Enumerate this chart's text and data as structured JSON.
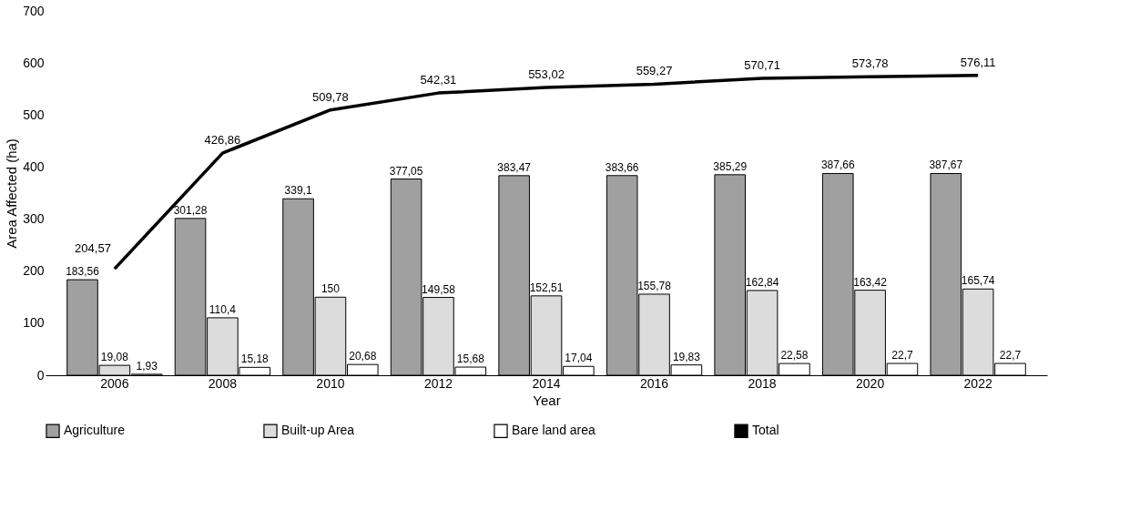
{
  "chart_data": {
    "type": "bar",
    "xlabel": "Year",
    "ylabel": "Area Affected (ha)",
    "categories": [
      "2006",
      "2008",
      "2010",
      "2012",
      "2014",
      "2016",
      "2018",
      "2020",
      "2022"
    ],
    "ylim": [
      0,
      700
    ],
    "yticks": [
      0,
      100,
      200,
      300,
      400,
      500,
      600,
      700
    ],
    "grid": false,
    "legend": "bottom",
    "series": [
      {
        "name": "Agriculture",
        "color": "#a0a0a0",
        "values": [
          183.56,
          301.28,
          339.1,
          377.05,
          383.47,
          383.66,
          385.29,
          387.66,
          387.67
        ],
        "value_labels": [
          "183,56",
          "301,28",
          "339,1",
          "377,05",
          "383,47",
          "383,66",
          "385,29",
          "387,66",
          "387,67"
        ]
      },
      {
        "name": "Built-up Area",
        "color": "#dcdcdc",
        "values": [
          19.08,
          110.4,
          150,
          149.58,
          152.51,
          155.78,
          162.84,
          163.42,
          165.74
        ],
        "value_labels": [
          "19,08",
          "110,4",
          "150",
          "149,58",
          "152,51",
          "155,78",
          "162,84",
          "163,42",
          "165,74"
        ]
      },
      {
        "name": "Bare land area",
        "color": "#ffffff",
        "values": [
          1.93,
          15.18,
          20.68,
          15.68,
          17.04,
          19.83,
          22.58,
          22.7,
          22.7
        ],
        "value_labels": [
          "1,93",
          "15,18",
          "20,68",
          "15,68",
          "17,04",
          "19,83",
          "22,58",
          "22,7",
          "22,7"
        ]
      },
      {
        "name": "Total",
        "type": "line",
        "color": "#000000",
        "values": [
          204.57,
          426.86,
          509.78,
          542.31,
          553.02,
          559.27,
          570.71,
          573.78,
          576.11
        ],
        "value_labels": [
          "204,57",
          "426,86",
          "509,78",
          "542,31",
          "553,02",
          "559,27",
          "570,71",
          "573,78",
          "576,11"
        ]
      }
    ]
  }
}
